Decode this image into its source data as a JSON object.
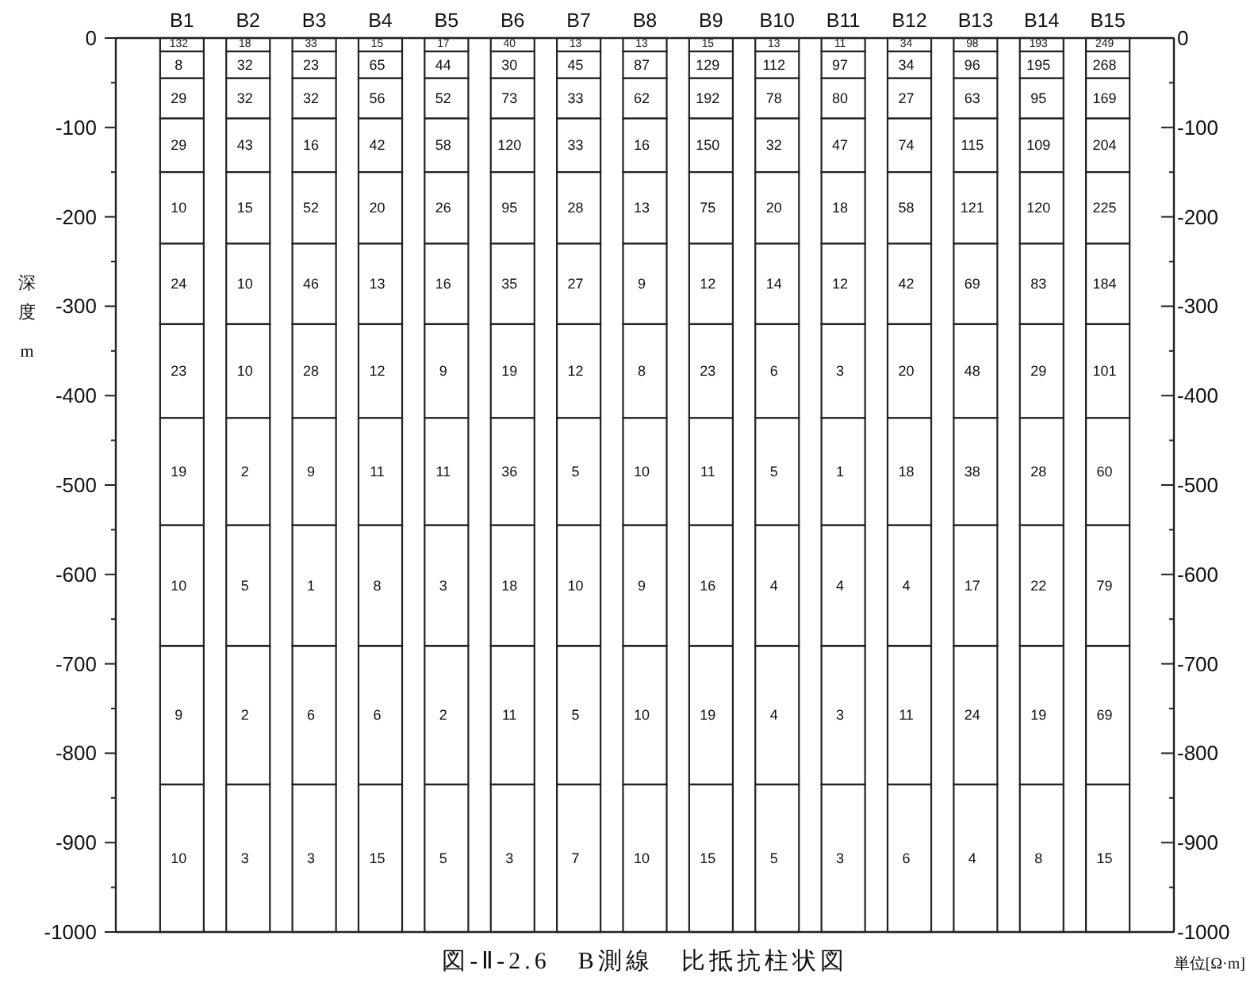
{
  "chart_data": {
    "type": "bar",
    "title": "図-Ⅱ-2.6　B測線　比抵抗柱状図",
    "ylabel": "深度 m",
    "categories": [
      "B1",
      "B2",
      "B3",
      "B4",
      "B5",
      "B6",
      "B7",
      "B8",
      "B9",
      "B10",
      "B11",
      "B12",
      "B13",
      "B14",
      "B15"
    ],
    "stacked": true,
    "series": [
      {
        "color": "#ffffff",
        "values": [
          -15,
          -15,
          -15,
          -15,
          -15,
          -15,
          -15,
          -15,
          -15,
          -15,
          -15,
          -15,
          -15,
          -15,
          -15
        ]
      },
      {
        "color": "#ffffff",
        "values": [
          -30,
          -30,
          -30,
          -30,
          -30,
          -30,
          -30,
          -30,
          -30,
          -30,
          -30,
          -30,
          -30,
          -30,
          -30
        ]
      },
      {
        "color": "#ffffff",
        "values": [
          -45,
          -45,
          -45,
          -45,
          -45,
          -45,
          -45,
          -45,
          -45,
          -45,
          -45,
          -45,
          -45,
          -45,
          -45
        ]
      },
      {
        "color": "#ffffff",
        "values": [
          -60,
          -60,
          -60,
          -60,
          -60,
          -60,
          -60,
          -60,
          -60,
          -60,
          -60,
          -60,
          -60,
          -60,
          -60
        ]
      },
      {
        "color": "#ffffff",
        "values": [
          -80,
          -80,
          -80,
          -80,
          -80,
          -80,
          -80,
          -80,
          -80,
          -80,
          -80,
          -80,
          -80,
          -80,
          -80
        ]
      },
      {
        "color": "#ffffff",
        "values": [
          -90,
          -90,
          -90,
          -90,
          -90,
          -90,
          -90,
          -90,
          -90,
          -90,
          -90,
          -90,
          -90,
          -90,
          -90
        ]
      },
      {
        "color": "#ffffff",
        "values": [
          -105,
          -105,
          -105,
          -105,
          -105,
          -105,
          -105,
          -105,
          -105,
          -105,
          -105,
          -105,
          -105,
          -105,
          -105
        ]
      },
      {
        "color": "#ffffff",
        "values": [
          -120,
          -120,
          -120,
          -120,
          -120,
          -120,
          -120,
          -120,
          -120,
          -120,
          -120,
          -120,
          -120,
          -120,
          -120
        ]
      },
      {
        "color": "#ffffff",
        "values": [
          -135,
          -135,
          -135,
          -135,
          -135,
          -135,
          -135,
          -135,
          -135,
          -135,
          -135,
          -135,
          -135,
          -135,
          -135
        ]
      },
      {
        "color": "#ffffff",
        "values": [
          -155,
          -155,
          -155,
          -155,
          -155,
          -155,
          -155,
          -155,
          -155,
          -155,
          -155,
          -155,
          -155,
          -155,
          -155
        ]
      },
      {
        "color": "#ffffff",
        "values": [
          -165,
          -165,
          -165,
          -165,
          -165,
          -165,
          -165,
          -165,
          -165,
          -165,
          -165,
          -165,
          -165,
          -165,
          -165
        ]
      }
    ],
    "annotations": [
      "132",
      "18",
      "33",
      "15",
      "17",
      "40",
      "13",
      "13",
      "15",
      "13",
      "11",
      "34",
      "98",
      "193",
      "249",
      "8",
      "32",
      "23",
      "65",
      "44",
      "30",
      "45",
      "87",
      "129",
      "112",
      "97",
      "34",
      "96",
      "195",
      "268",
      "29",
      "32",
      "32",
      "56",
      "52",
      "73",
      "33",
      "62",
      "192",
      "78",
      "80",
      "27",
      "63",
      "95",
      "169",
      "29",
      "43",
      "16",
      "42",
      "58",
      "120",
      "33",
      "16",
      "150",
      "32",
      "47",
      "74",
      "115",
      "109",
      "204",
      "10",
      "15",
      "52",
      "20",
      "26",
      "95",
      "28",
      "13",
      "75",
      "20",
      "18",
      "58",
      "121",
      "120",
      "225",
      "24",
      "10",
      "46",
      "13",
      "16",
      "35",
      "27",
      "9",
      "12",
      "14",
      "12",
      "42",
      "69",
      "83",
      "184",
      "23",
      "10",
      "28",
      "12",
      "9",
      "19",
      "12",
      "8",
      "23",
      "6",
      "3",
      "20",
      "48",
      "29",
      "101",
      "19",
      "2",
      "9",
      "11",
      "11",
      "36",
      "5",
      "10",
      "11",
      "5",
      "1",
      "18",
      "38",
      "28",
      "60",
      "10",
      "5",
      "1",
      "8",
      "3",
      "18",
      "10",
      "9",
      "16",
      "4",
      "4",
      "4",
      "17",
      "22",
      "79",
      "9",
      "2",
      "6",
      "6",
      "2",
      "11",
      "5",
      "10",
      "19",
      "4",
      "3",
      "11",
      "24",
      "19",
      "69",
      "10",
      "3",
      "3",
      "15",
      "5",
      "3",
      "7",
      "10",
      "15",
      "5",
      "3",
      "6",
      "4",
      "8",
      "15",
      "単位[Ω·m]"
    ],
    "ylim": [
      -1000,
      0
    ],
    "yticks": [
      0,
      {
        "value": -50,
        "label": null
      },
      -100,
      {
        "value": -150,
        "label": null
      },
      -200,
      {
        "value": -250,
        "label": null
      },
      -300,
      {
        "value": -350,
        "label": null
      },
      -400,
      {
        "value": -450,
        "label": null
      },
      -500,
      {
        "value": -550,
        "label": null
      },
      -600,
      {
        "value": -650,
        "label": null
      },
      -700,
      {
        "value": -750,
        "label": null
      },
      -800,
      {
        "value": -850,
        "label": null
      },
      -900,
      {
        "value": -950,
        "label": null
      },
      -1000
    ],
    "y2lim": [
      -1000,
      0
    ],
    "y2ticks": [
      0,
      {
        "value": -50,
        "label": null
      },
      -100,
      {
        "value": -150,
        "label": null
      },
      -200,
      {
        "value": -250,
        "label": null
      },
      -300,
      {
        "value": -350,
        "label": null
      },
      -400,
      {
        "value": -450,
        "label": null
      },
      -500,
      {
        "value": -550,
        "label": null
      },
      -600,
      {
        "value": -650,
        "label": null
      },
      -700,
      {
        "value": -750,
        "label": null
      },
      -800,
      {
        "value": -850,
        "label": null
      },
      -900,
      {
        "value": -950,
        "label": null
      },
      -1000
    ]
  }
}
